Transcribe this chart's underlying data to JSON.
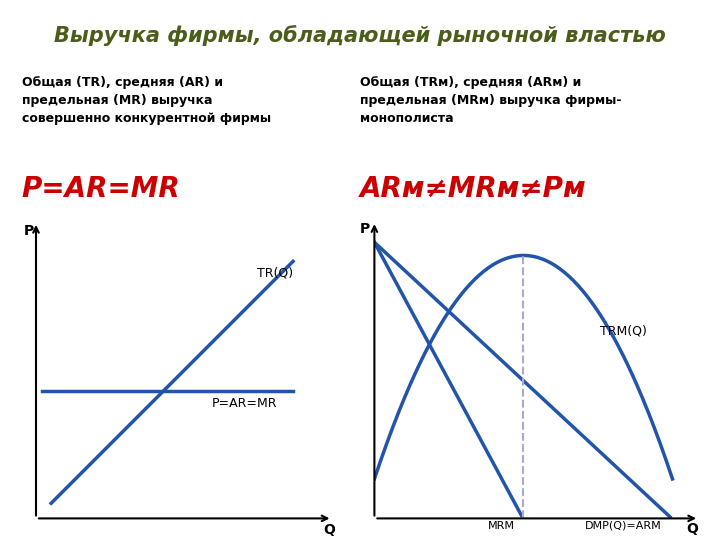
{
  "title": "Выручка фирмы, обладающей рыночной властью",
  "title_bg": "#dde8c0",
  "title_color": "#4a5e1a",
  "title_fontsize": 15,
  "left_label": "Общая (TR), средняя (AR) и\nпредельная (MR) выручка\nсовершенно конкурентной фирмы",
  "right_label": "Общая (TRм), средняя (ARм) и\nпредельная (MRм) выручка фирмы-\nмонополиста",
  "left_formula": "P=AR=MR",
  "right_formula": "ARм≠MRм≠Pм",
  "formula_color": "#cc0000",
  "formula_fontsize": 20,
  "curve_color": "#2255aa",
  "bg_color": "#ffffff",
  "label_fontsize": 9,
  "text_color": "#000000"
}
